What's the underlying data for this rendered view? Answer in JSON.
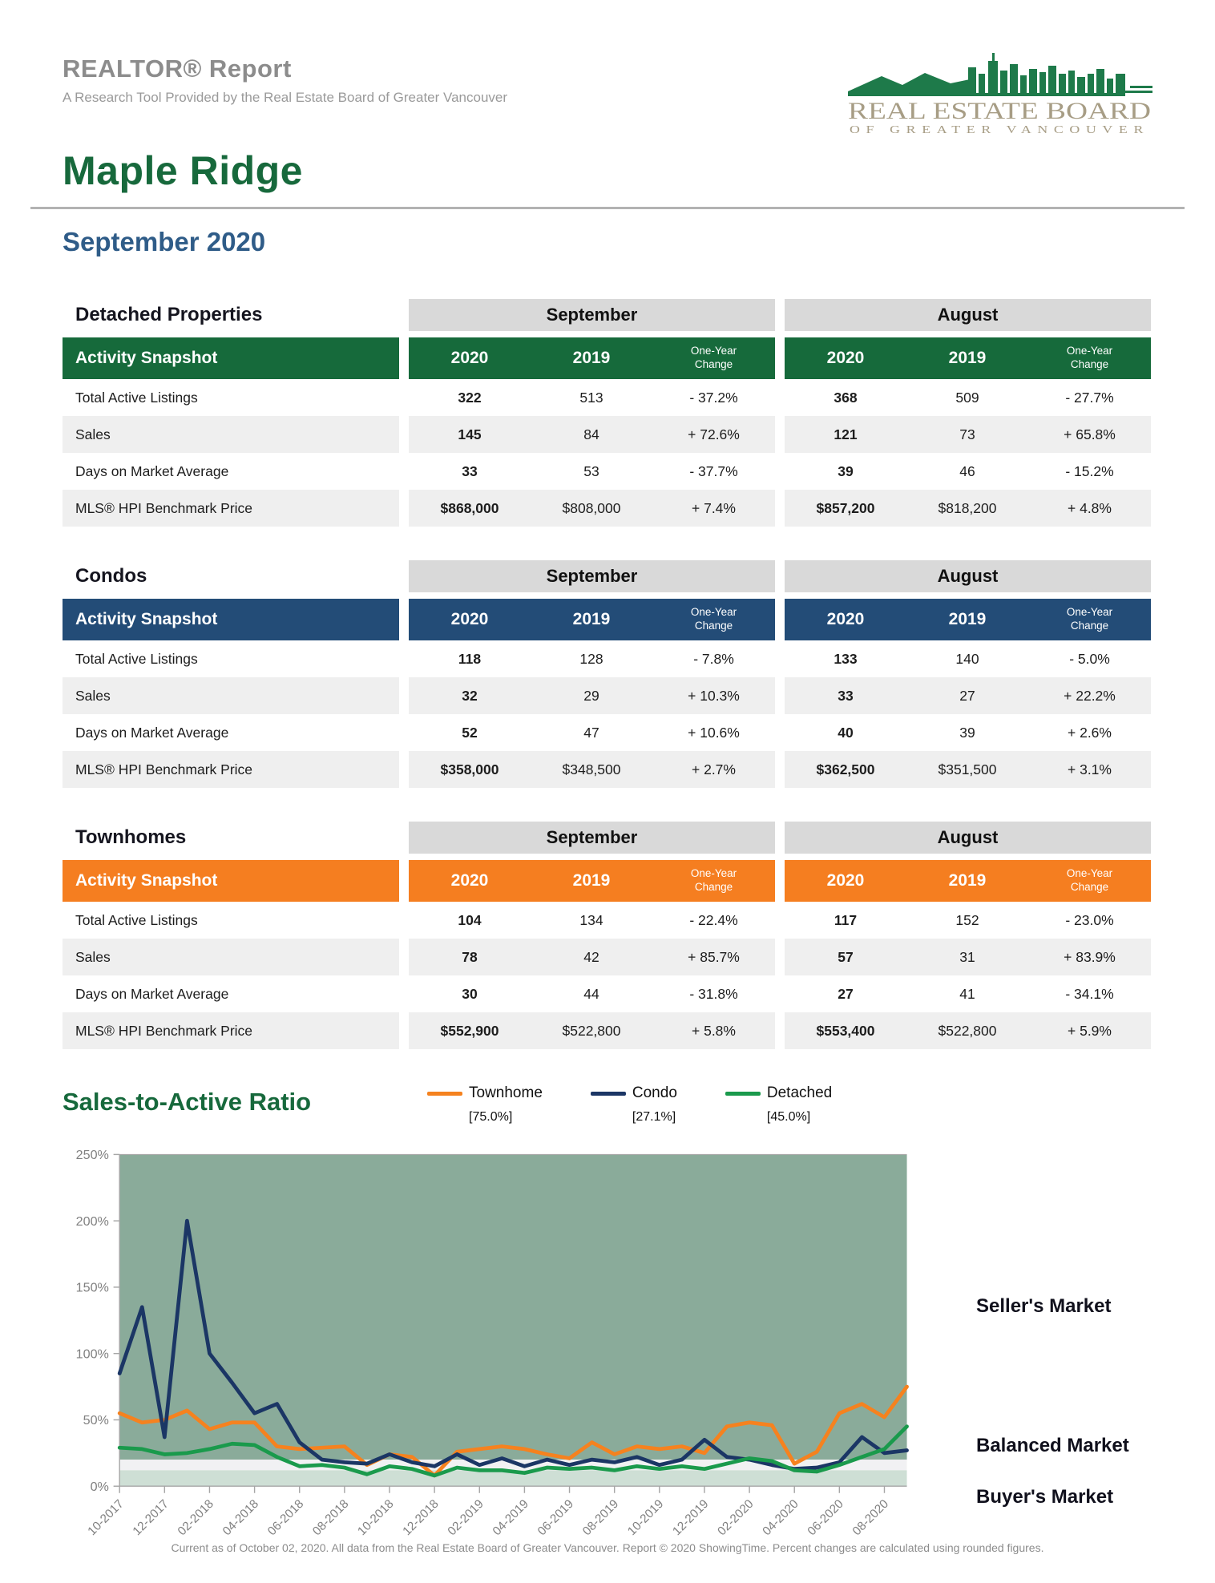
{
  "header": {
    "report_title": "REALTOR® Report",
    "report_subtitle": "A Research Tool Provided by the Real Estate Board of Greater Vancouver",
    "logo": {
      "line1": "REAL ESTATE BOARD",
      "line2": "OF GREATER VANCOUVER",
      "skyline_color": "#1e7a4a",
      "text_color": "#a79d85"
    },
    "area_title": "Maple Ridge",
    "period_title": "September 2020"
  },
  "tables": [
    {
      "name": "Detached Properties",
      "accent_color": "#166a3b",
      "snapshot_label": "Activity Snapshot",
      "month_groups": [
        "September",
        "August"
      ],
      "year_columns": [
        "2020",
        "2019",
        "One-Year Change"
      ],
      "rows": [
        {
          "label": "Total Active Listings",
          "september": [
            "322",
            "513",
            "- 37.2%"
          ],
          "august": [
            "368",
            "509",
            "- 27.7%"
          ]
        },
        {
          "label": "Sales",
          "september": [
            "145",
            "84",
            "+ 72.6%"
          ],
          "august": [
            "121",
            "73",
            "+ 65.8%"
          ]
        },
        {
          "label": "Days on Market Average",
          "september": [
            "33",
            "53",
            "- 37.7%"
          ],
          "august": [
            "39",
            "46",
            "- 15.2%"
          ]
        },
        {
          "label": "MLS® HPI Benchmark Price",
          "september": [
            "$868,000",
            "$808,000",
            "+ 7.4%"
          ],
          "august": [
            "$857,200",
            "$818,200",
            "+ 4.8%"
          ]
        }
      ]
    },
    {
      "name": "Condos",
      "accent_color": "#234c77",
      "snapshot_label": "Activity Snapshot",
      "month_groups": [
        "September",
        "August"
      ],
      "year_columns": [
        "2020",
        "2019",
        "One-Year Change"
      ],
      "rows": [
        {
          "label": "Total Active Listings",
          "september": [
            "118",
            "128",
            "- 7.8%"
          ],
          "august": [
            "133",
            "140",
            "- 5.0%"
          ]
        },
        {
          "label": "Sales",
          "september": [
            "32",
            "29",
            "+ 10.3%"
          ],
          "august": [
            "33",
            "27",
            "+ 22.2%"
          ]
        },
        {
          "label": "Days on Market Average",
          "september": [
            "52",
            "47",
            "+ 10.6%"
          ],
          "august": [
            "40",
            "39",
            "+ 2.6%"
          ]
        },
        {
          "label": "MLS® HPI Benchmark Price",
          "september": [
            "$358,000",
            "$348,500",
            "+ 2.7%"
          ],
          "august": [
            "$362,500",
            "$351,500",
            "+ 3.1%"
          ]
        }
      ]
    },
    {
      "name": "Townhomes",
      "accent_color": "#f57e20",
      "snapshot_label": "Activity Snapshot",
      "month_groups": [
        "September",
        "August"
      ],
      "year_columns": [
        "2020",
        "2019",
        "One-Year Change"
      ],
      "rows": [
        {
          "label": "Total Active Listings",
          "september": [
            "104",
            "134",
            "- 22.4%"
          ],
          "august": [
            "117",
            "152",
            "- 23.0%"
          ]
        },
        {
          "label": "Sales",
          "september": [
            "78",
            "42",
            "+ 85.7%"
          ],
          "august": [
            "57",
            "31",
            "+ 83.9%"
          ]
        },
        {
          "label": "Days on Market Average",
          "september": [
            "30",
            "44",
            "- 31.8%"
          ],
          "august": [
            "27",
            "41",
            "- 34.1%"
          ]
        },
        {
          "label": "MLS® HPI Benchmark Price",
          "september": [
            "$552,900",
            "$522,800",
            "+ 5.8%"
          ],
          "august": [
            "$553,400",
            "$522,800",
            "+ 5.9%"
          ]
        }
      ]
    }
  ],
  "chart_data": {
    "type": "line",
    "title": "Sales-to-Active Ratio",
    "ylim": [
      0,
      250
    ],
    "y_ticks_pct": [
      0,
      50,
      100,
      150,
      200,
      250
    ],
    "x": [
      "10-2017",
      "11-2017",
      "12-2017",
      "01-2018",
      "02-2018",
      "03-2018",
      "04-2018",
      "05-2018",
      "06-2018",
      "07-2018",
      "08-2018",
      "09-2018",
      "10-2018",
      "11-2018",
      "12-2018",
      "01-2019",
      "02-2019",
      "03-2019",
      "04-2019",
      "05-2019",
      "06-2019",
      "07-2019",
      "08-2019",
      "09-2019",
      "10-2019",
      "11-2019",
      "12-2019",
      "01-2020",
      "02-2020",
      "03-2020",
      "04-2020",
      "05-2020",
      "06-2020",
      "07-2020",
      "08-2020",
      "09-2020"
    ],
    "x_tick_labels": [
      "10-2017",
      "12-2017",
      "02-2018",
      "04-2018",
      "06-2018",
      "08-2018",
      "10-2018",
      "12-2018",
      "02-2019",
      "04-2019",
      "06-2019",
      "08-2019",
      "10-2019",
      "12-2019",
      "02-2020",
      "04-2020",
      "06-2020",
      "08-2020"
    ],
    "series": [
      {
        "name": "Townhome",
        "current": "[75.0%]",
        "color": "#f5821f",
        "values": [
          55,
          48,
          50,
          57,
          43,
          48,
          48,
          30,
          28,
          29,
          30,
          16,
          24,
          22,
          8,
          26,
          28,
          30,
          28,
          24,
          21,
          33,
          24,
          30,
          28,
          30,
          25,
          45,
          48,
          46,
          17,
          26,
          55,
          62,
          52,
          75
        ]
      },
      {
        "name": "Condo",
        "current": "[27.1%]",
        "color": "#1b3665",
        "values": [
          85,
          135,
          37,
          200,
          100,
          78,
          55,
          62,
          33,
          20,
          18,
          17,
          24,
          18,
          15,
          24,
          16,
          21,
          15,
          20,
          16,
          20,
          18,
          22,
          16,
          20,
          35,
          22,
          20,
          16,
          13,
          14,
          18,
          37,
          25,
          27
        ]
      },
      {
        "name": "Detached",
        "current": "[45.0%]",
        "color": "#1a9a4c",
        "values": [
          29,
          28,
          24,
          25,
          28,
          32,
          31,
          22,
          15,
          16,
          14,
          9,
          15,
          13,
          8,
          14,
          12,
          12,
          10,
          14,
          13,
          14,
          12,
          15,
          13,
          15,
          13,
          17,
          21,
          19,
          12,
          11,
          16,
          22,
          28,
          45
        ]
      }
    ],
    "bands": {
      "seller_min_pct": 20,
      "balanced_min_pct": 12,
      "seller_color": "#8aab9a",
      "balanced_color": "#f1f1f3",
      "buyer_color": "#cedfd5"
    },
    "market_labels": {
      "seller": "Seller's Market",
      "balanced": "Balanced Market",
      "buyer": "Buyer's Market"
    },
    "legend_position": "top-right",
    "grid": false
  },
  "footer": {
    "text": "Current as of October 02, 2020. All data from the Real Estate Board of Greater Vancouver. Report © 2020 ShowingTime. Percent changes are calculated using rounded figures."
  }
}
